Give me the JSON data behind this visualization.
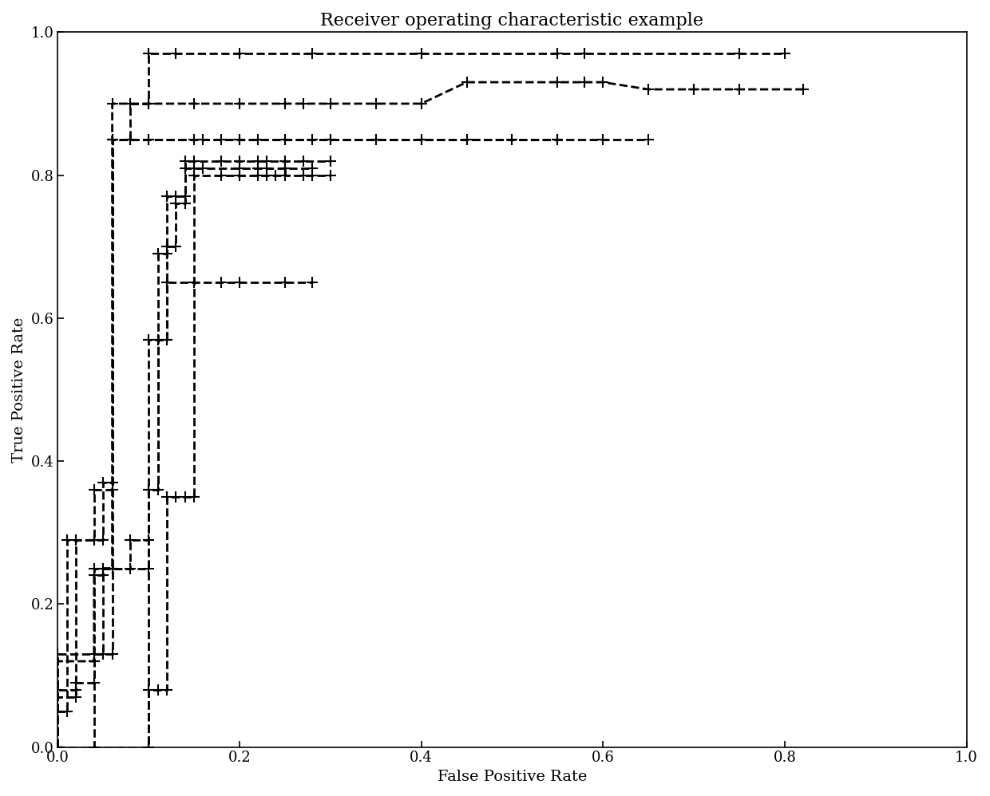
{
  "title": "Receiver operating characteristic example",
  "xlabel": "False Positive Rate",
  "ylabel": "True Positive Rate",
  "xlim": [
    0.0,
    1.0
  ],
  "ylim": [
    0.0,
    1.0
  ],
  "background_color": "#ffffff",
  "line_color": "#000000",
  "line_style": "--",
  "line_width": 2.0,
  "marker": "+",
  "marker_size": 10,
  "marker_color": "#000000",
  "title_fontsize": 16,
  "label_fontsize": 14,
  "tick_fontsize": 13,
  "curves": [
    [
      [
        0.0,
        0.0
      ],
      [
        0.0,
        0.05
      ],
      [
        0.0,
        0.07
      ],
      [
        0.02,
        0.07
      ],
      [
        0.02,
        0.09
      ],
      [
        0.04,
        0.09
      ],
      [
        0.04,
        0.13
      ],
      [
        0.06,
        0.13
      ],
      [
        0.06,
        0.85
      ],
      [
        0.08,
        0.85
      ],
      [
        0.08,
        0.9
      ],
      [
        0.1,
        0.9
      ],
      [
        0.1,
        0.97
      ],
      [
        0.13,
        0.97
      ],
      [
        0.2,
        0.97
      ],
      [
        0.28,
        0.97
      ],
      [
        0.4,
        0.97
      ],
      [
        0.55,
        0.97
      ],
      [
        0.58,
        0.97
      ],
      [
        0.75,
        0.97
      ],
      [
        0.8,
        0.97
      ]
    ],
    [
      [
        0.0,
        0.0
      ],
      [
        0.0,
        0.12
      ],
      [
        0.04,
        0.12
      ],
      [
        0.04,
        0.24
      ],
      [
        0.05,
        0.24
      ],
      [
        0.05,
        0.25
      ],
      [
        0.06,
        0.25
      ],
      [
        0.06,
        0.9
      ],
      [
        0.1,
        0.9
      ],
      [
        0.15,
        0.9
      ],
      [
        0.2,
        0.9
      ],
      [
        0.25,
        0.9
      ],
      [
        0.27,
        0.9
      ],
      [
        0.3,
        0.9
      ],
      [
        0.35,
        0.9
      ],
      [
        0.4,
        0.9
      ],
      [
        0.45,
        0.93
      ],
      [
        0.55,
        0.93
      ],
      [
        0.58,
        0.93
      ],
      [
        0.6,
        0.93
      ],
      [
        0.65,
        0.92
      ],
      [
        0.7,
        0.92
      ],
      [
        0.75,
        0.92
      ],
      [
        0.82,
        0.92
      ]
    ],
    [
      [
        0.0,
        0.0
      ],
      [
        0.0,
        0.08
      ],
      [
        0.02,
        0.08
      ],
      [
        0.02,
        0.29
      ],
      [
        0.04,
        0.29
      ],
      [
        0.04,
        0.36
      ],
      [
        0.06,
        0.36
      ],
      [
        0.06,
        0.85
      ],
      [
        0.1,
        0.85
      ],
      [
        0.16,
        0.85
      ],
      [
        0.2,
        0.85
      ],
      [
        0.25,
        0.85
      ],
      [
        0.3,
        0.85
      ],
      [
        0.35,
        0.85
      ],
      [
        0.4,
        0.85
      ],
      [
        0.45,
        0.85
      ],
      [
        0.5,
        0.85
      ],
      [
        0.55,
        0.85
      ],
      [
        0.6,
        0.85
      ],
      [
        0.65,
        0.85
      ]
    ],
    [
      [
        0.0,
        0.0
      ],
      [
        0.0,
        0.05
      ],
      [
        0.01,
        0.05
      ],
      [
        0.01,
        0.29
      ],
      [
        0.04,
        0.29
      ],
      [
        0.05,
        0.29
      ],
      [
        0.05,
        0.37
      ],
      [
        0.06,
        0.37
      ],
      [
        0.06,
        0.85
      ],
      [
        0.08,
        0.85
      ],
      [
        0.1,
        0.85
      ],
      [
        0.15,
        0.85
      ],
      [
        0.18,
        0.85
      ],
      [
        0.2,
        0.85
      ],
      [
        0.22,
        0.85
      ],
      [
        0.25,
        0.85
      ],
      [
        0.28,
        0.85
      ],
      [
        0.3,
        0.85
      ],
      [
        0.35,
        0.85
      ],
      [
        0.4,
        0.85
      ],
      [
        0.45,
        0.85
      ],
      [
        0.5,
        0.85
      ],
      [
        0.55,
        0.85
      ]
    ],
    [
      [
        0.0,
        0.0
      ],
      [
        0.0,
        0.13
      ],
      [
        0.05,
        0.13
      ],
      [
        0.05,
        0.25
      ],
      [
        0.08,
        0.25
      ],
      [
        0.08,
        0.29
      ],
      [
        0.1,
        0.29
      ],
      [
        0.1,
        0.36
      ],
      [
        0.11,
        0.36
      ],
      [
        0.11,
        0.57
      ],
      [
        0.12,
        0.57
      ],
      [
        0.12,
        0.65
      ],
      [
        0.15,
        0.65
      ],
      [
        0.18,
        0.65
      ],
      [
        0.2,
        0.65
      ],
      [
        0.25,
        0.65
      ],
      [
        0.28,
        0.65
      ]
    ],
    [
      [
        0.0,
        0.0
      ],
      [
        0.04,
        0.0
      ],
      [
        0.04,
        0.25
      ],
      [
        0.06,
        0.25
      ],
      [
        0.1,
        0.25
      ],
      [
        0.1,
        0.36
      ],
      [
        0.11,
        0.36
      ],
      [
        0.11,
        0.69
      ],
      [
        0.12,
        0.69
      ],
      [
        0.12,
        0.7
      ],
      [
        0.13,
        0.7
      ],
      [
        0.13,
        0.76
      ],
      [
        0.14,
        0.76
      ],
      [
        0.14,
        0.81
      ],
      [
        0.15,
        0.81
      ],
      [
        0.16,
        0.81
      ],
      [
        0.2,
        0.81
      ],
      [
        0.22,
        0.81
      ],
      [
        0.23,
        0.81
      ],
      [
        0.25,
        0.81
      ],
      [
        0.25,
        0.8
      ],
      [
        0.27,
        0.8
      ],
      [
        0.28,
        0.8
      ],
      [
        0.3,
        0.8
      ]
    ],
    [
      [
        0.0,
        0.0
      ],
      [
        0.1,
        0.0
      ],
      [
        0.1,
        0.57
      ],
      [
        0.11,
        0.57
      ],
      [
        0.12,
        0.57
      ],
      [
        0.12,
        0.77
      ],
      [
        0.13,
        0.77
      ],
      [
        0.14,
        0.77
      ],
      [
        0.14,
        0.82
      ],
      [
        0.15,
        0.82
      ],
      [
        0.18,
        0.82
      ],
      [
        0.2,
        0.82
      ],
      [
        0.22,
        0.82
      ],
      [
        0.23,
        0.82
      ],
      [
        0.25,
        0.82
      ],
      [
        0.27,
        0.82
      ],
      [
        0.3,
        0.82
      ]
    ],
    [
      [
        0.0,
        0.0
      ],
      [
        0.1,
        0.0
      ],
      [
        0.1,
        0.08
      ],
      [
        0.11,
        0.08
      ],
      [
        0.12,
        0.08
      ],
      [
        0.12,
        0.35
      ],
      [
        0.13,
        0.35
      ],
      [
        0.14,
        0.35
      ],
      [
        0.15,
        0.35
      ],
      [
        0.15,
        0.8
      ],
      [
        0.18,
        0.8
      ],
      [
        0.2,
        0.8
      ],
      [
        0.22,
        0.8
      ],
      [
        0.23,
        0.8
      ],
      [
        0.24,
        0.8
      ],
      [
        0.25,
        0.8
      ],
      [
        0.25,
        0.81
      ],
      [
        0.28,
        0.81
      ]
    ]
  ]
}
